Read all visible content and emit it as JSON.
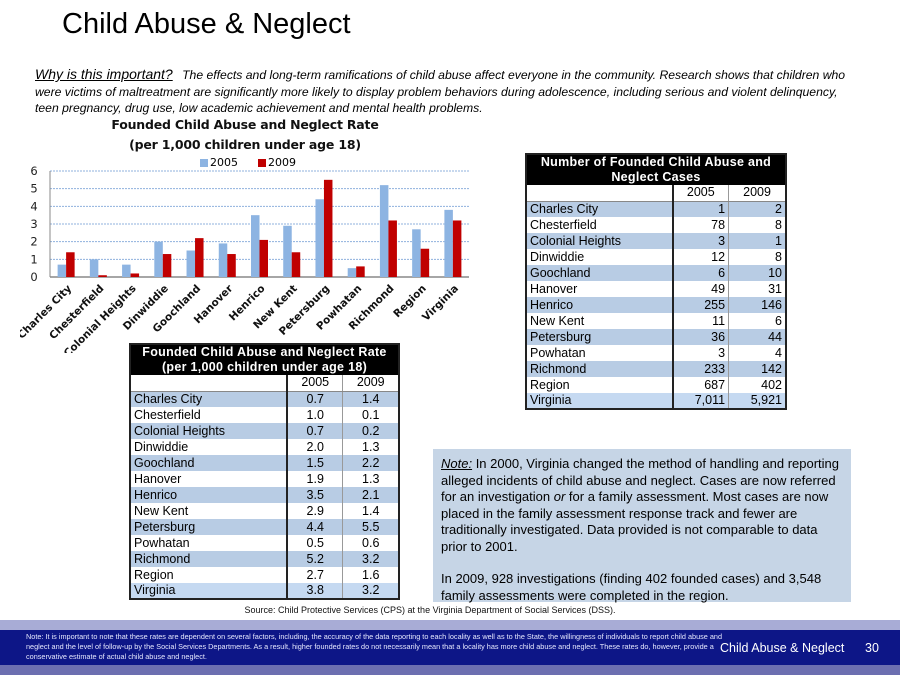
{
  "page": {
    "title": "Child Abuse & Neglect",
    "intro_label": "Why is this important?",
    "intro_text": "The effects and long-term ramifications of child abuse affect everyone in the community.  Research shows that children who were victims of maltreatment are significantly more likely to display problem behaviors during adolescence, including serious and violent delinquency, teen pregnancy, drug use, low academic achievement and mental health problems."
  },
  "colors": {
    "series_2005": "#8db4e2",
    "series_2009": "#c00000",
    "footer_band": "#0d1687",
    "note_bg": "#c6d5e6",
    "table_row_shade": "#b8cce4"
  },
  "chart_data": {
    "type": "bar",
    "title_line1": "Founded Child Abuse and Neglect Rate",
    "title_line2": "(per 1,000 children under age 18)",
    "xlabel": "",
    "ylabel": "",
    "ylim": [
      0,
      6
    ],
    "yticks": [
      "0",
      "1",
      "2",
      "3",
      "4",
      "5",
      "6"
    ],
    "grid": true,
    "legend_position": "top",
    "categories": [
      "Charles City",
      "Chesterfield",
      "Colonial Heights",
      "Dinwiddie",
      "Goochland",
      "Hanover",
      "Henrico",
      "New Kent",
      "Petersburg",
      "Powhatan",
      "Richmond",
      "Region",
      "Virginia"
    ],
    "series": [
      {
        "name": "2005",
        "values": [
          0.7,
          1.0,
          0.7,
          2.0,
          1.5,
          1.9,
          3.5,
          2.9,
          4.4,
          0.5,
          5.2,
          2.7,
          3.8
        ]
      },
      {
        "name": "2009",
        "values": [
          1.4,
          0.1,
          0.2,
          1.3,
          2.2,
          1.3,
          2.1,
          1.4,
          5.5,
          0.6,
          3.2,
          1.6,
          3.2
        ]
      }
    ]
  },
  "rate_table": {
    "title_line1": "Founded Child Abuse and Neglect Rate",
    "title_line2": "(per 1,000 children under age 18)",
    "columns": [
      "",
      "2005",
      "2009"
    ],
    "rows": [
      [
        "Charles City",
        "0.7",
        "1.4"
      ],
      [
        "Chesterfield",
        "1.0",
        "0.1"
      ],
      [
        "Colonial Heights",
        "0.7",
        "0.2"
      ],
      [
        "Dinwiddie",
        "2.0",
        "1.3"
      ],
      [
        "Goochland",
        "1.5",
        "2.2"
      ],
      [
        "Hanover",
        "1.9",
        "1.3"
      ],
      [
        "Henrico",
        "3.5",
        "2.1"
      ],
      [
        "New Kent",
        "2.9",
        "1.4"
      ],
      [
        "Petersburg",
        "4.4",
        "5.5"
      ],
      [
        "Powhatan",
        "0.5",
        "0.6"
      ],
      [
        "Richmond",
        "5.2",
        "3.2"
      ],
      [
        "Region",
        "2.7",
        "1.6"
      ],
      [
        "Virginia",
        "3.8",
        "3.2"
      ]
    ]
  },
  "count_table": {
    "title_line1": "Number of Founded Child Abuse and",
    "title_line2": "Neglect Cases",
    "columns": [
      "",
      "2005",
      "2009"
    ],
    "rows": [
      [
        "Charles City",
        "1",
        "2"
      ],
      [
        "Chesterfield",
        "78",
        "8"
      ],
      [
        "Colonial Heights",
        "3",
        "1"
      ],
      [
        "Dinwiddie",
        "12",
        "8"
      ],
      [
        "Goochland",
        "6",
        "10"
      ],
      [
        "Hanover",
        "49",
        "31"
      ],
      [
        "Henrico",
        "255",
        "146"
      ],
      [
        "New Kent",
        "11",
        "6"
      ],
      [
        "Petersburg",
        "36",
        "44"
      ],
      [
        "Powhatan",
        "3",
        "4"
      ],
      [
        "Richmond",
        "233",
        "142"
      ],
      [
        "Region",
        "687",
        "402"
      ],
      [
        "Virginia",
        "7,011",
        "5,921"
      ]
    ]
  },
  "note": {
    "label": "Note:",
    "p1_a": " In 2000, Virginia changed the method of handling and reporting alleged incidents of child abuse and neglect.  Cases are now referred for an investigation ",
    "p1_em": "or",
    "p1_b": " for a family assessment. Most cases are now placed in the family assessment response track and fewer are traditionally investigated.  Data provided is not comparable to data prior to 2001.",
    "p2": "In 2009, 928 investigations (finding 402 founded cases) and 3,548 family assessments were completed in the region."
  },
  "source": "Source: Child Protective Services (CPS) at the Virginia Department of Social Services (DSS).",
  "footer": {
    "note": "Note: It is important to note that these rates are dependent on several factors, including, the accuracy of the data reporting to each locality as well as to the State, the willingness of individuals to report child abuse and neglect and the level of follow-up by the Social Services Departments.  As a result, higher founded rates do not necessarily mean that a locality has more child abuse and neglect.  These rates do, however, provide a conservative estimate of actual child abuse and neglect.",
    "section": "Child Abuse & Neglect",
    "page_number": "30"
  }
}
